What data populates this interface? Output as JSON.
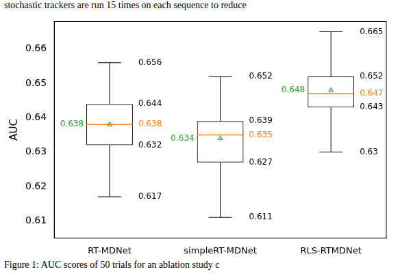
{
  "chart_data": {
    "type": "box",
    "annotations": [
      "stochastic trackers are run 15 times on each sequence to reduce",
      "Figure 1: AUC scores of 50 trials for an ablation study c"
    ],
    "y_label": "AUC",
    "categories": [
      "RT-MDNet",
      "simpleRT-MDNet",
      "RLS-RTMDNet"
    ],
    "min": [
      0.617,
      0.611,
      0.63
    ],
    "q1": [
      0.632,
      0.627,
      0.643
    ],
    "median": [
      0.638,
      0.635,
      0.647
    ],
    "q3": [
      0.644,
      0.639,
      0.652
    ],
    "max": [
      0.656,
      0.652,
      0.665
    ],
    "mean": [
      0.638,
      0.634,
      0.648
    ],
    "ylim": [
      0.605,
      0.668
    ],
    "yticks": [
      0.61,
      0.62,
      0.63,
      0.64,
      0.65,
      0.66
    ],
    "grid": false,
    "data_labels": true
  }
}
